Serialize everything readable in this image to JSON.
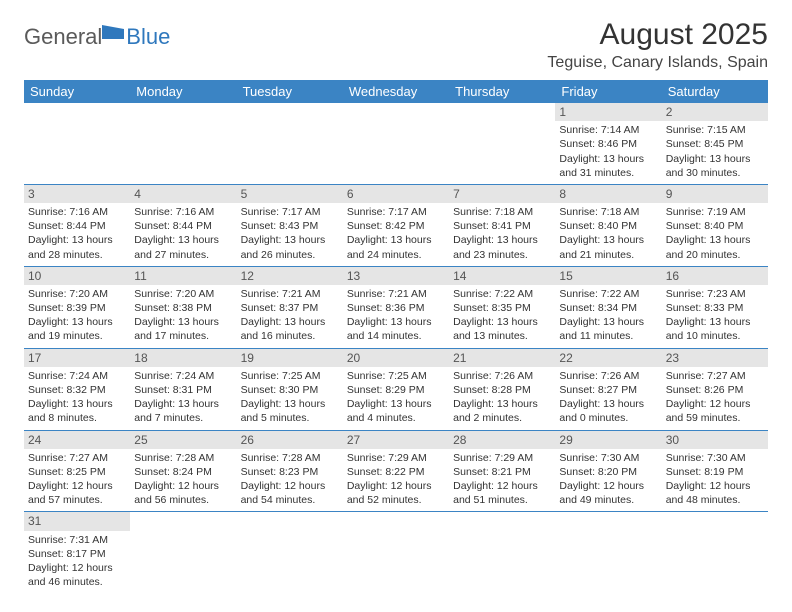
{
  "logo": {
    "part1": "General",
    "part2": "Blue"
  },
  "title": "August 2025",
  "location": "Teguise, Canary Islands, Spain",
  "colors": {
    "header_bg": "#3b84c4",
    "header_text": "#ffffff",
    "daynum_bg": "#e5e5e5",
    "border": "#3b84c4",
    "logo_gray": "#5a5a5a",
    "logo_blue": "#2f78bd"
  },
  "weekdays": [
    "Sunday",
    "Monday",
    "Tuesday",
    "Wednesday",
    "Thursday",
    "Friday",
    "Saturday"
  ],
  "weeks": [
    [
      null,
      null,
      null,
      null,
      null,
      {
        "d": "1",
        "sr": "Sunrise: 7:14 AM",
        "ss": "Sunset: 8:46 PM",
        "d1": "Daylight: 13 hours",
        "d2": "and 31 minutes."
      },
      {
        "d": "2",
        "sr": "Sunrise: 7:15 AM",
        "ss": "Sunset: 8:45 PM",
        "d1": "Daylight: 13 hours",
        "d2": "and 30 minutes."
      }
    ],
    [
      {
        "d": "3",
        "sr": "Sunrise: 7:16 AM",
        "ss": "Sunset: 8:44 PM",
        "d1": "Daylight: 13 hours",
        "d2": "and 28 minutes."
      },
      {
        "d": "4",
        "sr": "Sunrise: 7:16 AM",
        "ss": "Sunset: 8:44 PM",
        "d1": "Daylight: 13 hours",
        "d2": "and 27 minutes."
      },
      {
        "d": "5",
        "sr": "Sunrise: 7:17 AM",
        "ss": "Sunset: 8:43 PM",
        "d1": "Daylight: 13 hours",
        "d2": "and 26 minutes."
      },
      {
        "d": "6",
        "sr": "Sunrise: 7:17 AM",
        "ss": "Sunset: 8:42 PM",
        "d1": "Daylight: 13 hours",
        "d2": "and 24 minutes."
      },
      {
        "d": "7",
        "sr": "Sunrise: 7:18 AM",
        "ss": "Sunset: 8:41 PM",
        "d1": "Daylight: 13 hours",
        "d2": "and 23 minutes."
      },
      {
        "d": "8",
        "sr": "Sunrise: 7:18 AM",
        "ss": "Sunset: 8:40 PM",
        "d1": "Daylight: 13 hours",
        "d2": "and 21 minutes."
      },
      {
        "d": "9",
        "sr": "Sunrise: 7:19 AM",
        "ss": "Sunset: 8:40 PM",
        "d1": "Daylight: 13 hours",
        "d2": "and 20 minutes."
      }
    ],
    [
      {
        "d": "10",
        "sr": "Sunrise: 7:20 AM",
        "ss": "Sunset: 8:39 PM",
        "d1": "Daylight: 13 hours",
        "d2": "and 19 minutes."
      },
      {
        "d": "11",
        "sr": "Sunrise: 7:20 AM",
        "ss": "Sunset: 8:38 PM",
        "d1": "Daylight: 13 hours",
        "d2": "and 17 minutes."
      },
      {
        "d": "12",
        "sr": "Sunrise: 7:21 AM",
        "ss": "Sunset: 8:37 PM",
        "d1": "Daylight: 13 hours",
        "d2": "and 16 minutes."
      },
      {
        "d": "13",
        "sr": "Sunrise: 7:21 AM",
        "ss": "Sunset: 8:36 PM",
        "d1": "Daylight: 13 hours",
        "d2": "and 14 minutes."
      },
      {
        "d": "14",
        "sr": "Sunrise: 7:22 AM",
        "ss": "Sunset: 8:35 PM",
        "d1": "Daylight: 13 hours",
        "d2": "and 13 minutes."
      },
      {
        "d": "15",
        "sr": "Sunrise: 7:22 AM",
        "ss": "Sunset: 8:34 PM",
        "d1": "Daylight: 13 hours",
        "d2": "and 11 minutes."
      },
      {
        "d": "16",
        "sr": "Sunrise: 7:23 AM",
        "ss": "Sunset: 8:33 PM",
        "d1": "Daylight: 13 hours",
        "d2": "and 10 minutes."
      }
    ],
    [
      {
        "d": "17",
        "sr": "Sunrise: 7:24 AM",
        "ss": "Sunset: 8:32 PM",
        "d1": "Daylight: 13 hours",
        "d2": "and 8 minutes."
      },
      {
        "d": "18",
        "sr": "Sunrise: 7:24 AM",
        "ss": "Sunset: 8:31 PM",
        "d1": "Daylight: 13 hours",
        "d2": "and 7 minutes."
      },
      {
        "d": "19",
        "sr": "Sunrise: 7:25 AM",
        "ss": "Sunset: 8:30 PM",
        "d1": "Daylight: 13 hours",
        "d2": "and 5 minutes."
      },
      {
        "d": "20",
        "sr": "Sunrise: 7:25 AM",
        "ss": "Sunset: 8:29 PM",
        "d1": "Daylight: 13 hours",
        "d2": "and 4 minutes."
      },
      {
        "d": "21",
        "sr": "Sunrise: 7:26 AM",
        "ss": "Sunset: 8:28 PM",
        "d1": "Daylight: 13 hours",
        "d2": "and 2 minutes."
      },
      {
        "d": "22",
        "sr": "Sunrise: 7:26 AM",
        "ss": "Sunset: 8:27 PM",
        "d1": "Daylight: 13 hours",
        "d2": "and 0 minutes."
      },
      {
        "d": "23",
        "sr": "Sunrise: 7:27 AM",
        "ss": "Sunset: 8:26 PM",
        "d1": "Daylight: 12 hours",
        "d2": "and 59 minutes."
      }
    ],
    [
      {
        "d": "24",
        "sr": "Sunrise: 7:27 AM",
        "ss": "Sunset: 8:25 PM",
        "d1": "Daylight: 12 hours",
        "d2": "and 57 minutes."
      },
      {
        "d": "25",
        "sr": "Sunrise: 7:28 AM",
        "ss": "Sunset: 8:24 PM",
        "d1": "Daylight: 12 hours",
        "d2": "and 56 minutes."
      },
      {
        "d": "26",
        "sr": "Sunrise: 7:28 AM",
        "ss": "Sunset: 8:23 PM",
        "d1": "Daylight: 12 hours",
        "d2": "and 54 minutes."
      },
      {
        "d": "27",
        "sr": "Sunrise: 7:29 AM",
        "ss": "Sunset: 8:22 PM",
        "d1": "Daylight: 12 hours",
        "d2": "and 52 minutes."
      },
      {
        "d": "28",
        "sr": "Sunrise: 7:29 AM",
        "ss": "Sunset: 8:21 PM",
        "d1": "Daylight: 12 hours",
        "d2": "and 51 minutes."
      },
      {
        "d": "29",
        "sr": "Sunrise: 7:30 AM",
        "ss": "Sunset: 8:20 PM",
        "d1": "Daylight: 12 hours",
        "d2": "and 49 minutes."
      },
      {
        "d": "30",
        "sr": "Sunrise: 7:30 AM",
        "ss": "Sunset: 8:19 PM",
        "d1": "Daylight: 12 hours",
        "d2": "and 48 minutes."
      }
    ],
    [
      {
        "d": "31",
        "sr": "Sunrise: 7:31 AM",
        "ss": "Sunset: 8:17 PM",
        "d1": "Daylight: 12 hours",
        "d2": "and 46 minutes."
      },
      null,
      null,
      null,
      null,
      null,
      null
    ]
  ]
}
